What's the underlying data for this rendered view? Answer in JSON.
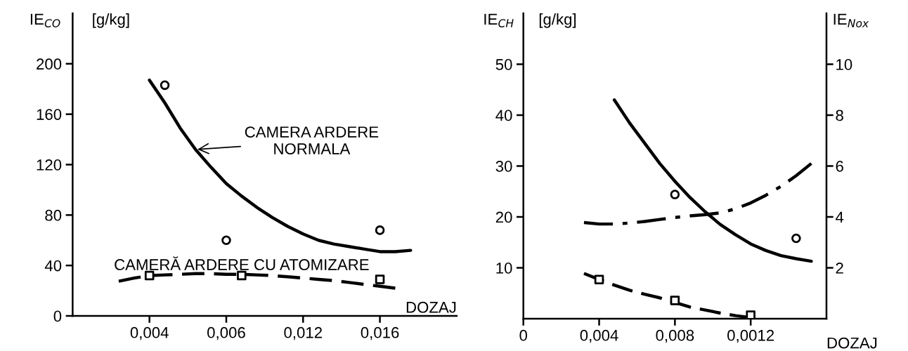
{
  "chart_data": [
    {
      "type": "line",
      "ylabel": "IE$_{CO}$",
      "xlabel": "DOZAJ",
      "annotations": [
        "[g/kg]",
        "CAMERA ARDERE\nNORMALA",
        "CAMERĂ ARDERE CU ATOMIZARE"
      ],
      "categories": [
        null,
        null,
        null,
        null,
        null,
        "0,004",
        null,
        null,
        null,
        null,
        "0,006",
        null,
        null,
        null,
        null,
        "0,012",
        null,
        null,
        null,
        null,
        "0,016",
        null,
        null,
        null,
        null,
        null
      ],
      "ylim": [
        0,
        240
      ],
      "yticks": [
        0,
        40,
        80,
        120,
        160,
        200
      ],
      "grid": false,
      "series": [
        {
          "type": "line",
          "line_style": "solid",
          "color": "#000000",
          "values": [
            null,
            null,
            null,
            null,
            null,
            187,
            169,
            149,
            132,
            118,
            105,
            95,
            86,
            78,
            71,
            65,
            60,
            57,
            55,
            53,
            51,
            51,
            52,
            null,
            null,
            null
          ]
        },
        {
          "type": "scatter",
          "marker": "circle",
          "color": "#000000",
          "values": [
            null,
            null,
            null,
            null,
            null,
            null,
            183,
            null,
            null,
            null,
            60,
            null,
            null,
            null,
            null,
            null,
            null,
            null,
            null,
            null,
            68,
            null,
            null,
            null,
            null,
            null
          ]
        },
        {
          "type": "line",
          "line_style": "dashed",
          "color": "#000000",
          "values": [
            null,
            null,
            null,
            27.5,
            30,
            32,
            32.5,
            33,
            33.5,
            33.5,
            33,
            33,
            32.5,
            32,
            31,
            30,
            29,
            28,
            26.5,
            25,
            23.5,
            22,
            null,
            null,
            null,
            null
          ]
        },
        {
          "type": "scatter",
          "marker": "square",
          "color": "#000000",
          "values": [
            null,
            null,
            null,
            null,
            null,
            32,
            null,
            null,
            null,
            null,
            null,
            32,
            null,
            null,
            null,
            null,
            null,
            null,
            null,
            null,
            29,
            null,
            null,
            null,
            null,
            null
          ]
        }
      ]
    },
    {
      "type": "line",
      "ylabel": "IE$_{CH}$",
      "y2label": "IE$_{Nox}$",
      "xlabel": "DOZAJ",
      "annotations": [
        "[g/kg]"
      ],
      "categories": [
        "0",
        null,
        null,
        null,
        null,
        "0,004",
        null,
        null,
        null,
        null,
        "0,008",
        null,
        null,
        null,
        null,
        "0,0012",
        null,
        null,
        null,
        null,
        null
      ],
      "ylim": [
        0,
        60
      ],
      "yticks": [
        10,
        20,
        30,
        40,
        50
      ],
      "y2lim": [
        0,
        12
      ],
      "y2ticks": [
        2,
        4,
        6,
        8,
        10
      ],
      "grid": false,
      "series": [
        {
          "type": "line",
          "line_style": "solid",
          "color": "#000000",
          "values": [
            null,
            null,
            null,
            null,
            null,
            null,
            43,
            38.5,
            34.5,
            30.5,
            27,
            23.8,
            21,
            18.5,
            16.5,
            14.7,
            13.4,
            12.4,
            11.8,
            11.3,
            null
          ]
        },
        {
          "type": "scatter",
          "marker": "circle",
          "color": "#000000",
          "values": [
            null,
            null,
            null,
            null,
            null,
            null,
            null,
            null,
            null,
            null,
            24.4,
            null,
            null,
            null,
            null,
            null,
            null,
            null,
            15.8,
            null,
            null
          ]
        },
        {
          "type": "line",
          "line_style": "dashed",
          "color": "#000000",
          "values": [
            null,
            null,
            null,
            null,
            8.9,
            7.7,
            6.6,
            5.6,
            4.8,
            4.1,
            3.2,
            2.3,
            1.7,
            1.1,
            0.6,
            0.2,
            null,
            null,
            null,
            null,
            null
          ]
        },
        {
          "type": "scatter",
          "marker": "square",
          "color": "#000000",
          "values": [
            null,
            null,
            null,
            null,
            null,
            7.7,
            null,
            null,
            null,
            null,
            3.6,
            null,
            null,
            null,
            null,
            0.7,
            null,
            null,
            null,
            null,
            null
          ]
        },
        {
          "type": "line",
          "line_style": "dashdot",
          "axis": "y2",
          "color": "#000000",
          "values": [
            null,
            null,
            null,
            null,
            3.78,
            3.72,
            3.72,
            3.76,
            3.82,
            3.9,
            3.98,
            4.04,
            4.09,
            4.16,
            4.32,
            4.55,
            4.85,
            5.2,
            5.62,
            6.1,
            null
          ]
        }
      ]
    }
  ]
}
